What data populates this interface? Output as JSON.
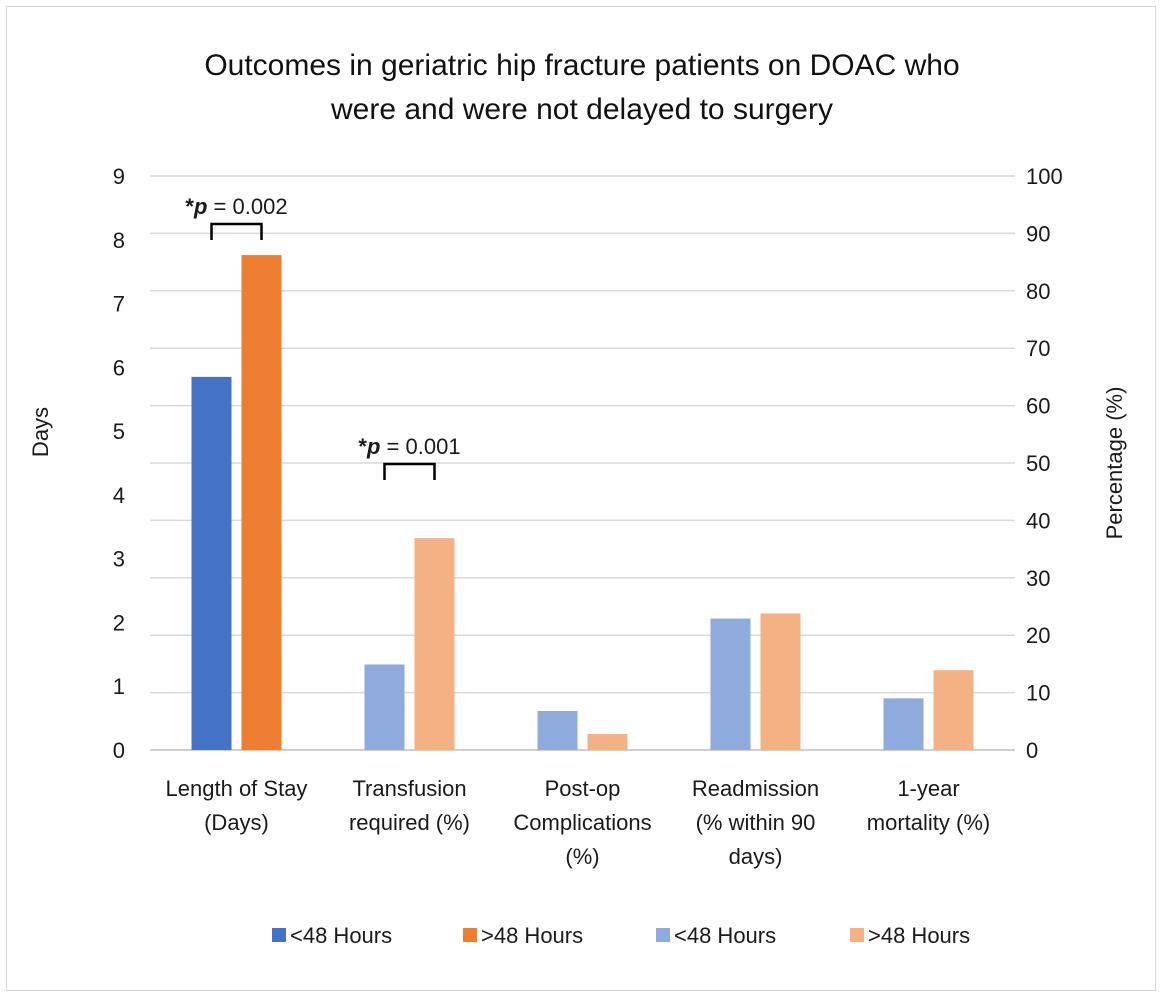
{
  "chart_data": {
    "type": "bar",
    "title_lines": [
      "Outcomes in geriatric hip fracture patients on DOAC who",
      "were and were not delayed to surgery"
    ],
    "y_left_label": "Days",
    "y_right_label": "Percentage (%)",
    "y_left_range": [
      0,
      9
    ],
    "y_left_ticks": [
      "0",
      "1",
      "2",
      "3",
      "4",
      "5",
      "6",
      "7",
      "8",
      "9"
    ],
    "y_right_range": [
      0,
      100
    ],
    "y_right_ticks": [
      "0",
      "10",
      "20",
      "30",
      "40",
      "50",
      "60",
      "70",
      "80",
      "90",
      "100"
    ],
    "grid": true,
    "legend_position": "bottom",
    "categories": [
      {
        "lines": [
          "Length of Stay",
          "(Days)"
        ],
        "axis": "left",
        "values": [
          5.85,
          7.76
        ]
      },
      {
        "lines": [
          "Transfusion",
          "required (%)"
        ],
        "axis": "right",
        "values": [
          14.9,
          36.9
        ]
      },
      {
        "lines": [
          "Post-op",
          "Complications",
          "(%)"
        ],
        "axis": "right",
        "values": [
          6.8,
          2.8
        ]
      },
      {
        "lines": [
          "Readmission",
          "(% within 90",
          "days)"
        ],
        "axis": "right",
        "values": [
          22.9,
          23.8
        ]
      },
      {
        "lines": [
          "1-year",
          "mortality (%)"
        ],
        "axis": "right",
        "values": [
          9.0,
          13.9
        ]
      }
    ],
    "series": [
      {
        "name": "<48 Hours",
        "color": "#4472c4"
      },
      {
        "name": ">48 Hours",
        "color": "#ed7d31"
      },
      {
        "name": "<48 Hours",
        "color": "#8faadc"
      },
      {
        "name": ">48 Hours",
        "color": "#f4b183"
      }
    ],
    "annotations": [
      {
        "category": 0,
        "prefix": "*",
        "italic": "p",
        "suffix": " = 0.002"
      },
      {
        "category": 1,
        "prefix": "*",
        "italic": "p",
        "suffix": " = 0.001"
      }
    ]
  }
}
